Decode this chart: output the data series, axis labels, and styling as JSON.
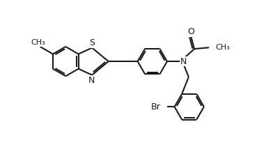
{
  "bg_color": "#ffffff",
  "line_color": "#1a1a1a",
  "line_width": 1.5,
  "dbo": 0.055,
  "fig_width": 3.92,
  "fig_height": 2.21,
  "dpi": 100,
  "xlim": [
    -5.8,
    3.8
  ],
  "ylim": [
    -2.5,
    2.3
  ],
  "ring_r": 0.52,
  "font_size_atom": 9,
  "font_size_small": 8
}
